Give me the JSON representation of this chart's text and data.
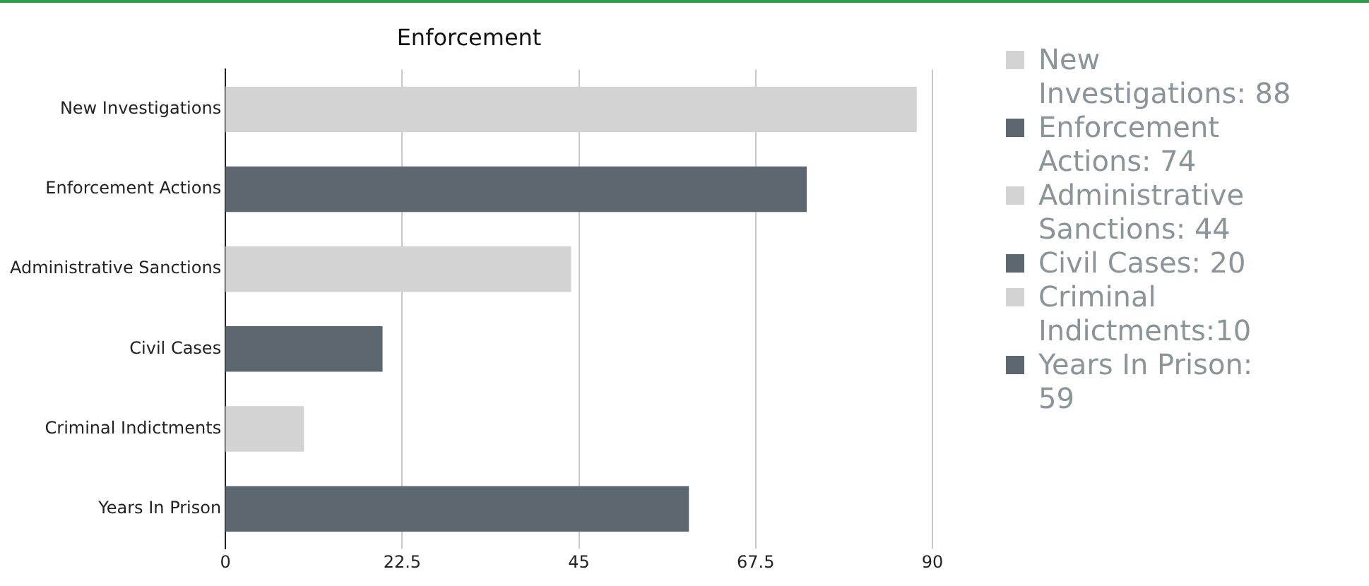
{
  "chart_data": {
    "type": "bar",
    "orientation": "horizontal",
    "title": "Enforcement",
    "categories": [
      "New Investigations",
      "Enforcement Actions",
      "Administrative Sanctions",
      "Civil Cases",
      "Criminal Indictments",
      "Years In Prison"
    ],
    "series": [
      {
        "name": "New Investigations: 88",
        "color": "#d3d3d3",
        "values": [
          88,
          null,
          null,
          null,
          null,
          null
        ]
      },
      {
        "name": "Enforcement Actions: 74",
        "color": "#5c6770",
        "values": [
          null,
          74,
          null,
          null,
          null,
          null
        ]
      },
      {
        "name": "Administrative Sanctions: 44",
        "color": "#d3d3d3",
        "values": [
          null,
          null,
          44,
          null,
          null,
          null
        ]
      },
      {
        "name": "Civil Cases: 20",
        "color": "#5c6770",
        "values": [
          null,
          null,
          null,
          20,
          null,
          null
        ]
      },
      {
        "name": "Criminal Indictments:10",
        "color": "#d3d3d3",
        "values": [
          null,
          null,
          null,
          null,
          10,
          null
        ]
      },
      {
        "name": "Years In Prison: 59",
        "color": "#5c6770",
        "values": [
          null,
          null,
          null,
          null,
          null,
          59
        ]
      }
    ],
    "xlim": [
      0,
      90
    ],
    "xticks": [
      0,
      22.5,
      45,
      67.5,
      90
    ],
    "grid": "x",
    "legend": "right"
  }
}
